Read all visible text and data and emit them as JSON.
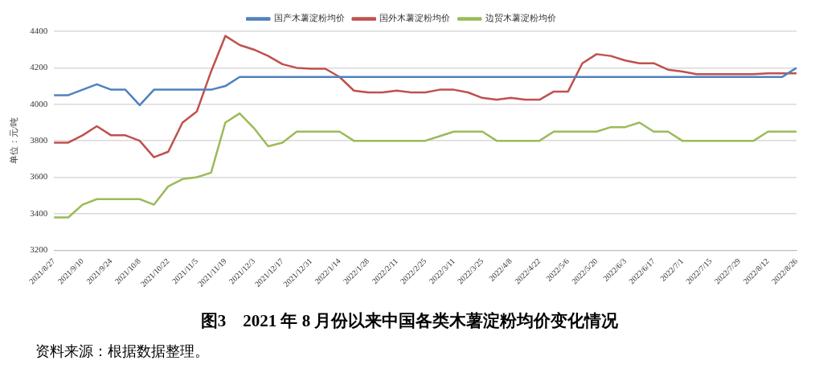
{
  "chart_data": {
    "type": "line",
    "title": "图3　2021 年 8 月份以来中国各类木薯淀粉均价变化情况",
    "ylabel": "单位：元/吨",
    "annotations": [
      "资料来源：根据数据整理。"
    ],
    "categories": [
      "2021/8/27",
      null,
      "2021/9/10",
      null,
      "2021/9/24",
      null,
      "2021/10/8",
      null,
      "2021/10/22",
      null,
      "2021/11/5",
      null,
      "2021/11/19",
      null,
      "2021/12/3",
      null,
      "2021/12/17",
      null,
      "2021/12/31",
      null,
      "2022/1/14",
      null,
      "2022/1/28",
      null,
      "2022/2/11",
      null,
      "2022/2/25",
      null,
      "2022/3/11",
      null,
      "2022/3/25",
      null,
      "2022/4/8",
      null,
      "2022/4/22",
      null,
      "2022/5/6",
      null,
      "2022/5/20",
      null,
      "2022/6/3",
      null,
      "2022/6/17",
      null,
      "2022/7/1",
      null,
      "2022/7/15",
      null,
      "2022/7/29",
      null,
      "2022/8/12",
      null,
      "2022/8/26"
    ],
    "series": [
      {
        "name": "国产木薯淀粉均价",
        "color": "#4f81bd",
        "values": [
          4050,
          4050,
          4080,
          4110,
          4080,
          4080,
          3995,
          4080,
          4080,
          4080,
          4080,
          4080,
          4100,
          4150,
          4150,
          4150,
          4150,
          4150,
          4150,
          4150,
          4150,
          4150,
          4150,
          4150,
          4150,
          4150,
          4150,
          4150,
          4150,
          4150,
          4150,
          4150,
          4150,
          4150,
          4150,
          4150,
          4150,
          4150,
          4150,
          4150,
          4150,
          4150,
          4150,
          4150,
          4150,
          4150,
          4150,
          4150,
          4150,
          4150,
          4150,
          4150,
          4200
        ]
      },
      {
        "name": "国外木薯淀粉均价",
        "color": "#c0504d",
        "values": [
          3790,
          3790,
          3830,
          3880,
          3830,
          3830,
          3800,
          3710,
          3740,
          3900,
          3960,
          4180,
          4375,
          4325,
          4300,
          4265,
          4220,
          4200,
          4195,
          4195,
          4150,
          4075,
          4065,
          4065,
          4075,
          4065,
          4065,
          4080,
          4080,
          4065,
          4035,
          4025,
          4035,
          4025,
          4025,
          4070,
          4070,
          4225,
          4275,
          4265,
          4240,
          4225,
          4225,
          4190,
          4180,
          4165,
          4165,
          4165,
          4165,
          4165,
          4170,
          4170,
          4170
        ]
      },
      {
        "name": "边贸木薯淀粉均价",
        "color": "#9bbb59",
        "values": [
          3380,
          3380,
          3450,
          3480,
          3480,
          3480,
          3480,
          3450,
          3550,
          3590,
          3600,
          3625,
          3900,
          3950,
          3870,
          3770,
          3790,
          3850,
          3850,
          3850,
          3850,
          3800,
          3800,
          3800,
          3800,
          3800,
          3800,
          3825,
          3850,
          3850,
          3850,
          3800,
          3800,
          3800,
          3800,
          3850,
          3850,
          3850,
          3850,
          3875,
          3875,
          3900,
          3850,
          3850,
          3800,
          3800,
          3800,
          3800,
          3800,
          3800,
          3850,
          3850,
          3850
        ]
      }
    ],
    "ylim": [
      3200,
      4400
    ],
    "yticks": [
      3200,
      3400,
      3600,
      3800,
      4000,
      4200,
      4400
    ],
    "grid": "y",
    "legend": "top",
    "marker": "none",
    "line_style": "solid"
  }
}
